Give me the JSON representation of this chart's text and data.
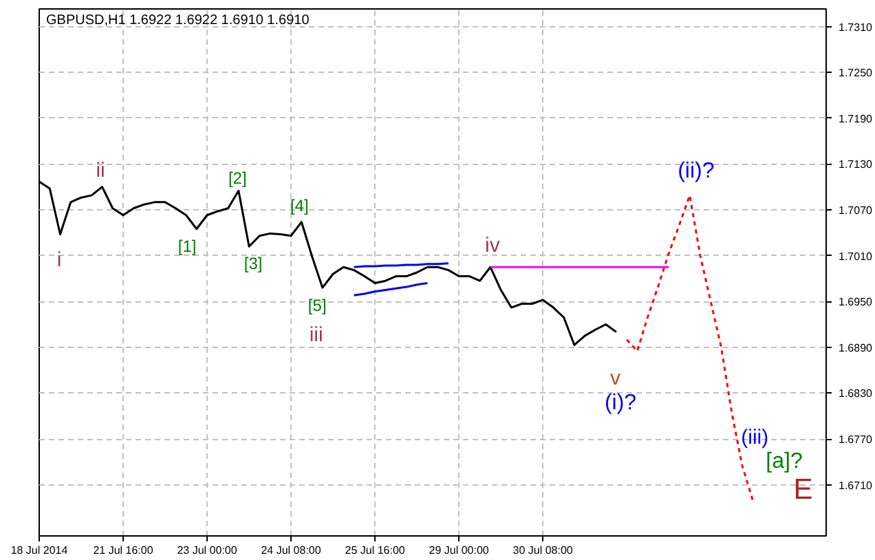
{
  "chart_data": {
    "type": "line",
    "title": "GBPUSD,H1  1.6922 1.6922 1.6910 1.6910",
    "categories": [
      "18 Jul 2014",
      null,
      null,
      null,
      null,
      null,
      null,
      null,
      "21 Jul 16:00",
      null,
      null,
      null,
      null,
      null,
      null,
      null,
      "23 Jul 00:00",
      null,
      null,
      null,
      null,
      null,
      null,
      null,
      "24 Jul 08:00",
      null,
      null,
      null,
      null,
      null,
      null,
      null,
      "25 Jul 16:00",
      null,
      null,
      null,
      null,
      null,
      null,
      null,
      "29 Jul 00:00",
      null,
      null,
      null,
      null,
      null,
      null,
      null,
      "30 Jul 08:00",
      null,
      null,
      null,
      null,
      null,
      null,
      null,
      null,
      null,
      null,
      null,
      null,
      null,
      null,
      null,
      null,
      null,
      null,
      null,
      null,
      null,
      null,
      null,
      null,
      null,
      null,
      null
    ],
    "ylim": [
      1.6643,
      1.7333
    ],
    "yticks": [
      {
        "value": 1.731,
        "label": "1.7310"
      },
      {
        "value": 1.725,
        "label": "1.7250"
      },
      {
        "value": 1.719,
        "label": "1.7190"
      },
      {
        "value": 1.713,
        "label": "1.7130"
      },
      {
        "value": 1.707,
        "label": "1.7070"
      },
      {
        "value": 1.701,
        "label": "1.7010"
      },
      {
        "value": 1.695,
        "label": "1.6950"
      },
      {
        "value": 1.689,
        "label": "1.6890"
      },
      {
        "value": 1.683,
        "label": "1.6830"
      },
      {
        "value": 1.677,
        "label": "1.6770"
      },
      {
        "value": 1.671,
        "label": "1.6710"
      }
    ],
    "grid": true,
    "marker": "none",
    "series": [
      {
        "color": "#000000",
        "line_style": "solid",
        "values": [
          1.7107,
          1.7098,
          1.7038,
          1.708,
          1.7086,
          1.7089,
          1.71,
          1.7072,
          1.7063,
          1.7072,
          1.7077,
          1.708,
          1.708,
          1.7072,
          1.7063,
          1.7045,
          1.7063,
          1.7068,
          1.7072,
          1.7095,
          1.7022,
          1.7036,
          1.7039,
          1.7038,
          1.7036,
          1.7054,
          1.7009,
          1.6968,
          1.6986,
          1.6995,
          1.6991,
          1.6983,
          1.6974,
          1.6977,
          1.6983,
          1.6983,
          1.6988,
          1.6995,
          1.6995,
          1.6991,
          1.6983,
          1.6983,
          1.6977,
          1.6995,
          1.6965,
          1.6942,
          1.6947,
          1.6947,
          1.6952,
          1.6942,
          1.6929,
          1.6893,
          1.6905,
          1.6913,
          1.692,
          1.691,
          null,
          null,
          null,
          null,
          null,
          null,
          null,
          null,
          null,
          null,
          null,
          null,
          null,
          null,
          null,
          null,
          null,
          null,
          null,
          null
        ]
      },
      {
        "color": "#ff0000",
        "line_style": "dotted",
        "values": [
          null,
          null,
          null,
          null,
          null,
          null,
          null,
          null,
          null,
          null,
          null,
          null,
          null,
          null,
          null,
          null,
          null,
          null,
          null,
          null,
          null,
          null,
          null,
          null,
          null,
          null,
          null,
          null,
          null,
          null,
          null,
          null,
          null,
          null,
          null,
          null,
          null,
          null,
          null,
          null,
          null,
          null,
          null,
          null,
          null,
          null,
          null,
          null,
          null,
          null,
          null,
          null,
          null,
          null,
          null,
          null,
          1.69,
          1.6885,
          1.693,
          1.697,
          1.7013,
          1.705,
          1.7089,
          1.701,
          1.695,
          1.689,
          1.6805,
          1.6735,
          1.669,
          null,
          null,
          null,
          null,
          null,
          null,
          null
        ]
      },
      {
        "color": "#ff00ff",
        "line_style": "solid",
        "values": [
          null,
          null,
          null,
          null,
          null,
          null,
          null,
          null,
          null,
          null,
          null,
          null,
          null,
          null,
          null,
          null,
          null,
          null,
          null,
          null,
          null,
          null,
          null,
          null,
          null,
          null,
          null,
          null,
          null,
          null,
          null,
          null,
          null,
          null,
          null,
          null,
          null,
          null,
          null,
          null,
          null,
          null,
          null,
          1.6995,
          1.6995,
          1.6995,
          1.6995,
          1.6995,
          1.6995,
          1.6995,
          1.6995,
          1.6995,
          1.6995,
          1.6995,
          1.6995,
          1.6995,
          1.6995,
          1.6995,
          1.6995,
          1.6995,
          1.6995,
          null,
          null,
          null,
          null,
          null,
          null,
          null,
          null,
          null,
          null,
          null,
          null,
          null,
          null,
          null
        ]
      },
      {
        "color": "#0000ff",
        "line_style": "solid",
        "values": [
          null,
          null,
          null,
          null,
          null,
          null,
          null,
          null,
          null,
          null,
          null,
          null,
          null,
          null,
          null,
          null,
          null,
          null,
          null,
          null,
          null,
          null,
          null,
          null,
          null,
          null,
          null,
          null,
          null,
          null,
          1.6995,
          1.6996,
          1.6996,
          1.6997,
          1.6997,
          1.6998,
          1.6998,
          1.6999,
          1.6999,
          1.7,
          null,
          null,
          null,
          null,
          null,
          null,
          null,
          null,
          null,
          null,
          null,
          null,
          null,
          null,
          null,
          null,
          null,
          null,
          null,
          null,
          null,
          null,
          null,
          null,
          null,
          null,
          null,
          null,
          null,
          null,
          null,
          null,
          null,
          null,
          null,
          null
        ]
      },
      {
        "color": "#0000ff",
        "line_style": "solid",
        "values": [
          null,
          null,
          null,
          null,
          null,
          null,
          null,
          null,
          null,
          null,
          null,
          null,
          null,
          null,
          null,
          null,
          null,
          null,
          null,
          null,
          null,
          null,
          null,
          null,
          null,
          null,
          null,
          null,
          null,
          null,
          1.6958,
          1.696,
          1.6963,
          1.6965,
          1.6967,
          1.6969,
          1.6972,
          1.6974,
          null,
          null,
          null,
          null,
          null,
          null,
          null,
          null,
          null,
          null,
          null,
          null,
          null,
          null,
          null,
          null,
          null,
          null,
          null,
          null,
          null,
          null,
          null,
          null,
          null,
          null,
          null,
          null,
          null,
          null,
          null,
          null,
          null,
          null,
          null,
          null,
          null,
          null
        ]
      }
    ],
    "annotations": [
      "i",
      "ii",
      "[1]",
      "[2]",
      "[3]",
      "[4]",
      "[5]",
      "iii",
      "iv",
      "v",
      "(i)?",
      "(ii)?",
      "(iii)",
      "[a]?",
      "E"
    ]
  }
}
